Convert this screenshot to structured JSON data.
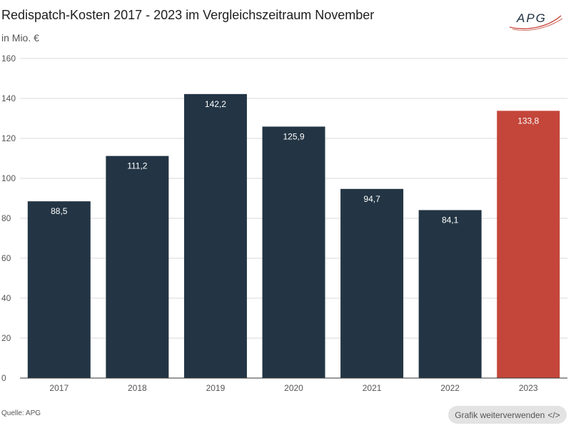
{
  "header": {
    "title": "Redispatch-Kosten 2017 - 2023 im Vergleichszeitraum November",
    "subtitle": "in Mio. €",
    "logo_text": "APG"
  },
  "footer": {
    "source": "Quelle: APG",
    "reuse_label": "Grafik weiterverwenden",
    "reuse_icon": "</>"
  },
  "colors": {
    "bar": "#233544",
    "highlight": "#c4463a"
  },
  "chart_data": {
    "type": "bar",
    "title": "Redispatch-Kosten 2017 - 2023 im Vergleichszeitraum November",
    "xlabel": "",
    "ylabel": "in Mio. €",
    "categories": [
      "2017",
      "2018",
      "2019",
      "2020",
      "2021",
      "2022",
      "2023"
    ],
    "values": [
      88.5,
      111.2,
      142.2,
      125.9,
      94.7,
      84.1,
      133.8
    ],
    "labels": [
      "88,5",
      "111,2",
      "142,2",
      "125,9",
      "94,7",
      "84,1",
      "133,8"
    ],
    "highlight_index": 6,
    "ylim": [
      0,
      160
    ],
    "yticks": [
      0,
      20,
      40,
      60,
      80,
      100,
      120,
      140,
      160
    ],
    "grid": true,
    "legend": "none"
  }
}
